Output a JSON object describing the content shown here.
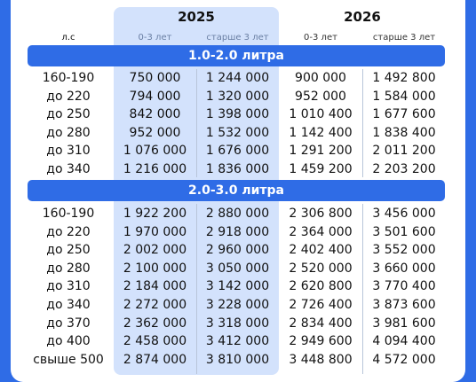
{
  "header": {
    "year_2025": "2025",
    "year_2026": "2026",
    "hp_label": "л.с",
    "age_young": "0-3 лет",
    "age_old": "старше 3 лет"
  },
  "section1": {
    "title": "1.0-2.0 литра",
    "rows": [
      {
        "hp": "160-190",
        "y25_young": "750 000",
        "y25_old": "1 244 000",
        "y26_young": "900 000",
        "y26_old": "1 492 800"
      },
      {
        "hp": "до 220",
        "y25_young": "794 000",
        "y25_old": "1 320 000",
        "y26_young": "952 000",
        "y26_old": "1 584 000"
      },
      {
        "hp": "до 250",
        "y25_young": "842 000",
        "y25_old": "1 398 000",
        "y26_young": "1 010 400",
        "y26_old": "1 677 600"
      },
      {
        "hp": "до 280",
        "y25_young": "952 000",
        "y25_old": "1 532 000",
        "y26_young": "1 142 400",
        "y26_old": "1 838 400"
      },
      {
        "hp": "до 310",
        "y25_young": "1 076 000",
        "y25_old": "1 676 000",
        "y26_young": "1 291 200",
        "y26_old": "2 011 200"
      },
      {
        "hp": "до 340",
        "y25_young": "1 216 000",
        "y25_old": "1 836 000",
        "y26_young": "1 459 200",
        "y26_old": "2 203 200"
      }
    ]
  },
  "section2": {
    "title": "2.0-3.0 литра",
    "rows": [
      {
        "hp": "160-190",
        "y25_young": "1 922 200",
        "y25_old": "2 880 000",
        "y26_young": "2 306 800",
        "y26_old": "3 456 000"
      },
      {
        "hp": "до 220",
        "y25_young": "1 970 000",
        "y25_old": "2 918 000",
        "y26_young": "2 364 000",
        "y26_old": "3 501 600"
      },
      {
        "hp": "до 250",
        "y25_young": "2 002 000",
        "y25_old": "2 960 000",
        "y26_young": "2 402 400",
        "y26_old": "3 552 000"
      },
      {
        "hp": "до 280",
        "y25_young": "2 100 000",
        "y25_old": "3 050 000",
        "y26_young": "2 520 000",
        "y26_old": "3 660 000"
      },
      {
        "hp": "до 310",
        "y25_young": "2 184 000",
        "y25_old": "3 142 000",
        "y26_young": "2 620 800",
        "y26_old": "3 770 400"
      },
      {
        "hp": "до 340",
        "y25_young": "2 272 000",
        "y25_old": "3 228 000",
        "y26_young": "2 726 400",
        "y26_old": "3 873 600"
      },
      {
        "hp": "до 370",
        "y25_young": "2 362 000",
        "y25_old": "3 318 000",
        "y26_young": "2 834 400",
        "y26_old": "3 981 600"
      },
      {
        "hp": "до 400",
        "y25_young": "2 458 000",
        "y25_old": "3 412 000",
        "y26_young": "2 949 600",
        "y26_old": "4 094 400"
      },
      {
        "hp": "свыше 500",
        "y25_young": "2 874 000",
        "y25_old": "3 810 000",
        "y26_young": "3 448 800",
        "y26_old": "4 572 000"
      }
    ]
  },
  "colors": {
    "accent": "#2f6ce6",
    "highlight_column": "#d3e2fc",
    "text": "#111111"
  }
}
